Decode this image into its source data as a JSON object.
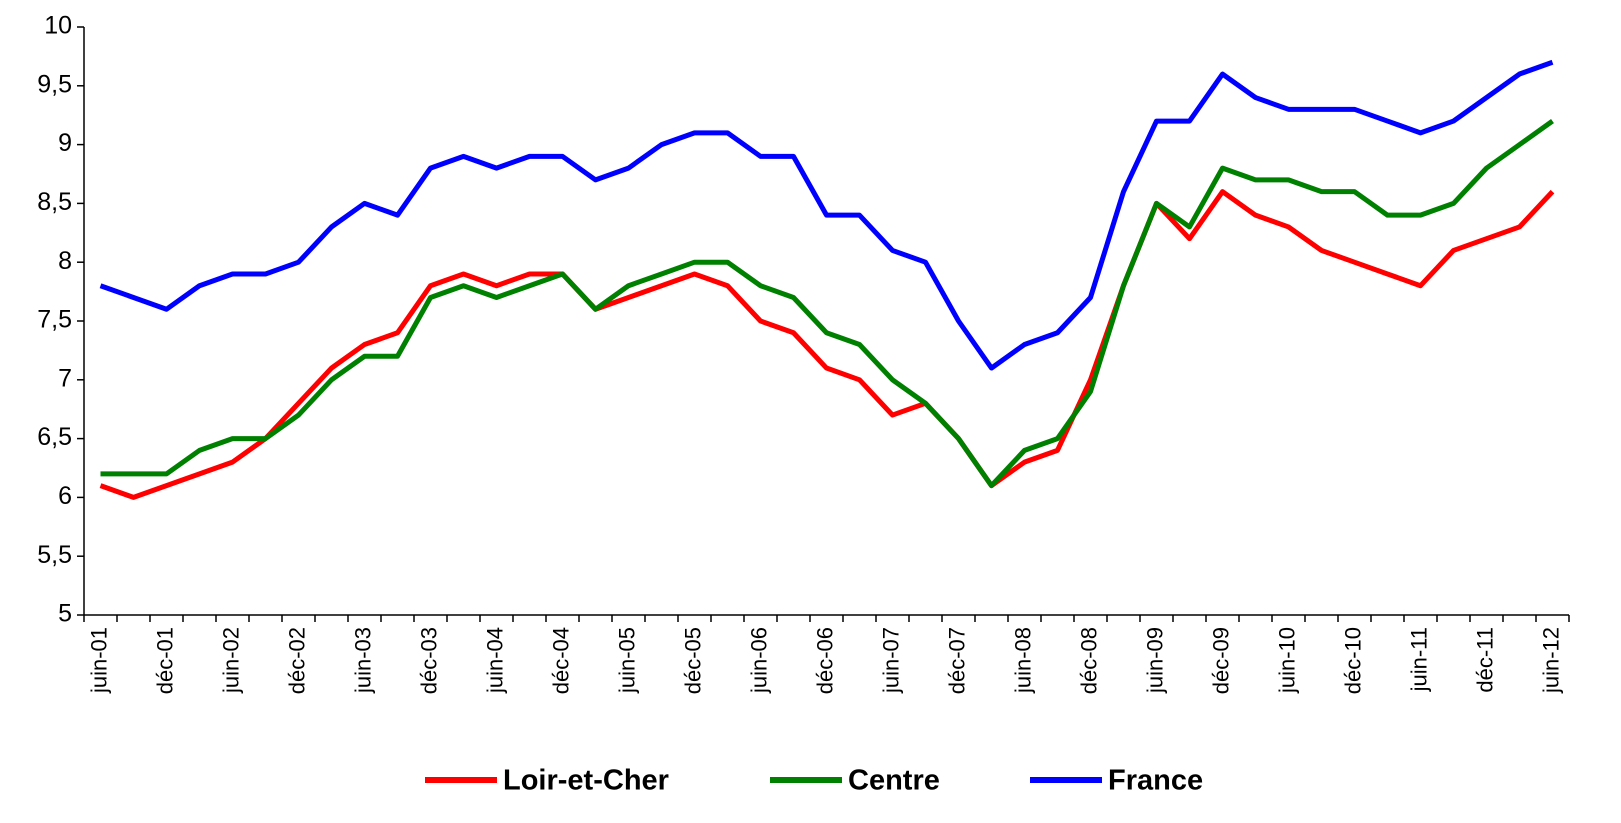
{
  "chart_data": {
    "type": "line",
    "categories": [
      "juin-01",
      null,
      "déc-01",
      null,
      "juin-02",
      null,
      "déc-02",
      null,
      "juin-03",
      null,
      "déc-03",
      null,
      "juin-04",
      null,
      "déc-04",
      null,
      "juin-05",
      null,
      "déc-05",
      null,
      "juin-06",
      null,
      "déc-06",
      null,
      "juin-07",
      null,
      "déc-07",
      null,
      "juin-08",
      null,
      "déc-08",
      null,
      "juin-09",
      null,
      "déc-09",
      null,
      "juin-10",
      null,
      "déc-10",
      null,
      "juin-11",
      null,
      "déc-11",
      null,
      "juin-12"
    ],
    "series": [
      {
        "name": "Loir-et-Cher",
        "color": "#ff0000",
        "values": [
          6.1,
          6.0,
          6.1,
          6.2,
          6.3,
          6.5,
          6.8,
          7.1,
          7.3,
          7.4,
          7.8,
          7.9,
          7.8,
          7.9,
          7.9,
          7.6,
          7.7,
          7.8,
          7.9,
          7.8,
          7.5,
          7.4,
          7.1,
          7.0,
          6.7,
          6.8,
          6.5,
          6.1,
          6.3,
          6.4,
          7.0,
          7.8,
          8.5,
          8.2,
          8.6,
          8.4,
          8.3,
          8.1,
          8.0,
          7.9,
          7.8,
          8.1,
          8.2,
          8.3,
          8.6
        ]
      },
      {
        "name": "Centre",
        "color": "#008000",
        "values": [
          6.2,
          6.2,
          6.2,
          6.4,
          6.5,
          6.5,
          6.7,
          7.0,
          7.2,
          7.2,
          7.7,
          7.8,
          7.7,
          7.8,
          7.9,
          7.6,
          7.8,
          7.9,
          8.0,
          8.0,
          7.8,
          7.7,
          7.4,
          7.3,
          7.0,
          6.8,
          6.5,
          6.1,
          6.4,
          6.5,
          6.9,
          7.8,
          8.5,
          8.3,
          8.8,
          8.7,
          8.7,
          8.6,
          8.6,
          8.4,
          8.4,
          8.5,
          8.8,
          9.0,
          9.2
        ]
      },
      {
        "name": "France",
        "color": "#0000ff",
        "values": [
          7.8,
          7.7,
          7.6,
          7.8,
          7.9,
          7.9,
          8.0,
          8.3,
          8.5,
          8.4,
          8.8,
          8.9,
          8.8,
          8.9,
          8.9,
          8.7,
          8.8,
          9.0,
          9.1,
          9.1,
          8.9,
          8.9,
          8.4,
          8.4,
          8.1,
          8.0,
          7.5,
          7.1,
          7.3,
          7.4,
          7.7,
          8.6,
          9.2,
          9.2,
          9.6,
          9.4,
          9.3,
          9.3,
          9.3,
          9.2,
          9.1,
          9.2,
          9.4,
          9.6,
          9.7
        ]
      }
    ],
    "ylim": [
      5,
      10
    ],
    "yticks": [
      5,
      {
        "value": 5.5,
        "label": "5,5"
      },
      6,
      {
        "value": 6.5,
        "label": "6,5"
      },
      7,
      {
        "value": 7.5,
        "label": "7,5"
      },
      8,
      {
        "value": 8.5,
        "label": "8,5"
      },
      9,
      {
        "value": 9.5,
        "label": "9,5"
      },
      10
    ],
    "grid": false,
    "legend": "bottom"
  }
}
